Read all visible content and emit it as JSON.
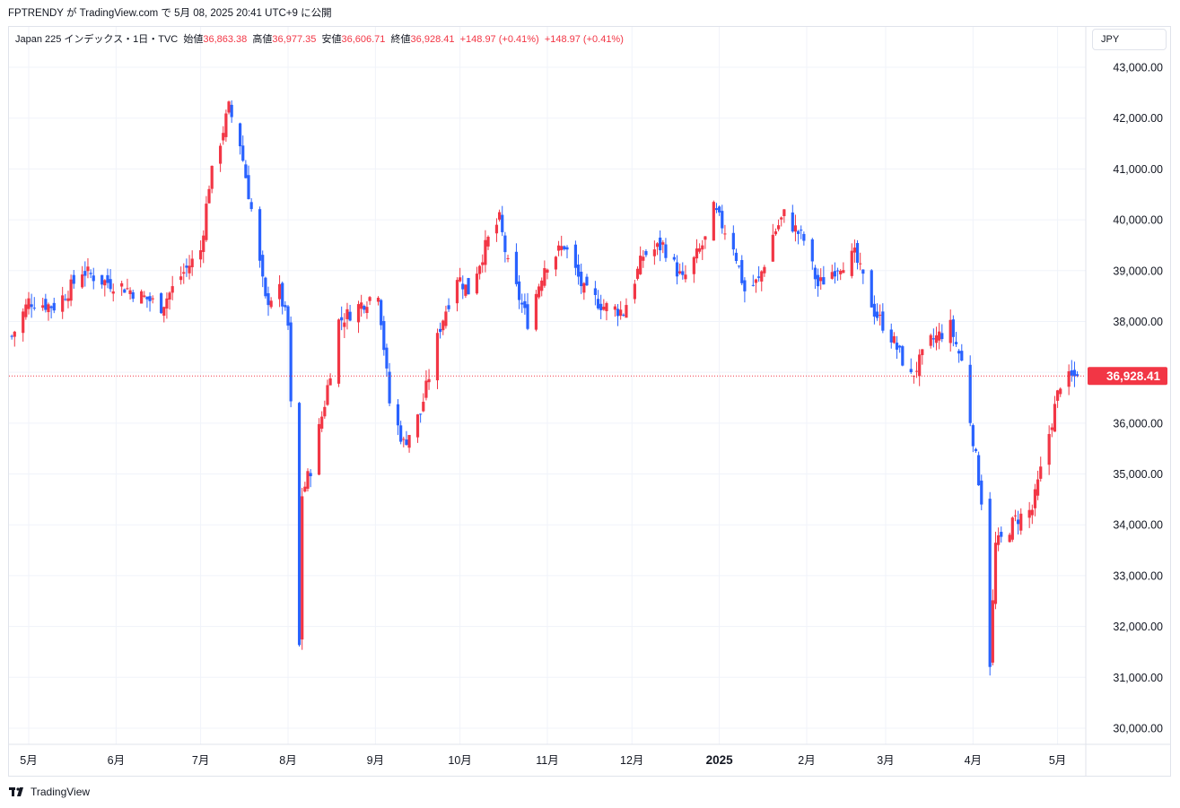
{
  "header": {
    "publish_line": "FPTRENDY が TradingView.com で 5月 08, 2025 20:41 UTC+9 に公開"
  },
  "legend": {
    "symbol": "Japan 225 インデックス・1日・TVC",
    "open_label": "始値",
    "open_value": "36,863.38",
    "high_label": "高値",
    "high_value": "36,977.35",
    "low_label": "安値",
    "low_value": "36,606.71",
    "close_label": "終値",
    "close_value": "36,928.41",
    "change1": "+148.97 (+0.41%)",
    "change2": "+148.97 (+0.41%)"
  },
  "currency": "JPY",
  "footer": {
    "brand": "TradingView"
  },
  "colors": {
    "up": "#f23645",
    "down": "#2962ff",
    "grid": "#f0f3fa",
    "price_line": "#f23645"
  },
  "chart_data": {
    "type": "candlestick",
    "title": "Japan 225 インデックス・1日・TVC",
    "ylim": [
      29700,
      43600
    ],
    "y_ticks": [
      "30,000.00",
      "31,000.00",
      "32,000.00",
      "33,000.00",
      "34,000.00",
      "35,000.00",
      "36,000.00",
      "37,000.00",
      "38,000.00",
      "39,000.00",
      "40,000.00",
      "41,000.00",
      "42,000.00",
      "43,000.00"
    ],
    "y_tick_values": [
      30000,
      31000,
      32000,
      33000,
      34000,
      35000,
      36000,
      37000,
      38000,
      39000,
      40000,
      41000,
      42000,
      43000
    ],
    "x_ticks": [
      {
        "label": "5月",
        "date": "2024-05-01"
      },
      {
        "label": "6月",
        "date": "2024-06-01"
      },
      {
        "label": "7月",
        "date": "2024-07-01"
      },
      {
        "label": "8月",
        "date": "2024-08-01"
      },
      {
        "label": "9月",
        "date": "2024-09-01"
      },
      {
        "label": "10月",
        "date": "2024-10-01"
      },
      {
        "label": "11月",
        "date": "2024-11-01"
      },
      {
        "label": "12月",
        "date": "2024-12-01"
      },
      {
        "label": "2025",
        "date": "2025-01-01",
        "bold": true
      },
      {
        "label": "2月",
        "date": "2025-02-01"
      },
      {
        "label": "3月",
        "date": "2025-03-01"
      },
      {
        "label": "4月",
        "date": "2025-04-01"
      },
      {
        "label": "5月",
        "date": "2025-05-01"
      }
    ],
    "last_price": 36928.41,
    "last_price_label": "36,928.41",
    "close_path": [
      [
        "2024-04-25",
        37700
      ],
      [
        "2024-05-01",
        38400
      ],
      [
        "2024-05-10",
        38300
      ],
      [
        "2024-05-15",
        38600
      ],
      [
        "2024-05-20",
        39000
      ],
      [
        "2024-05-27",
        38800
      ],
      [
        "2024-06-03",
        38700
      ],
      [
        "2024-06-10",
        38500
      ],
      [
        "2024-06-17",
        38300
      ],
      [
        "2024-06-24",
        38900
      ],
      [
        "2024-07-01",
        39400
      ],
      [
        "2024-07-04",
        40700
      ],
      [
        "2024-07-11",
        42200
      ],
      [
        "2024-07-15",
        41500
      ],
      [
        "2024-07-19",
        40200
      ],
      [
        "2024-07-24",
        38400
      ],
      [
        "2024-07-29",
        38600
      ],
      [
        "2024-08-01",
        37900
      ],
      [
        "2024-08-05",
        31600
      ],
      [
        "2024-08-06",
        34600
      ],
      [
        "2024-08-09",
        35100
      ],
      [
        "2024-08-14",
        36400
      ],
      [
        "2024-08-19",
        38000
      ],
      [
        "2024-08-26",
        38300
      ],
      [
        "2024-09-02",
        38600
      ],
      [
        "2024-09-06",
        36400
      ],
      [
        "2024-09-11",
        35600
      ],
      [
        "2024-09-17",
        36200
      ],
      [
        "2024-09-24",
        37900
      ],
      [
        "2024-09-30",
        38900
      ],
      [
        "2024-10-04",
        38600
      ],
      [
        "2024-10-11",
        39600
      ],
      [
        "2024-10-15",
        40000
      ],
      [
        "2024-10-18",
        39100
      ],
      [
        "2024-10-25",
        38000
      ],
      [
        "2024-10-31",
        39100
      ],
      [
        "2024-11-07",
        39500
      ],
      [
        "2024-11-14",
        38600
      ],
      [
        "2024-11-21",
        38300
      ],
      [
        "2024-11-28",
        38200
      ],
      [
        "2024-12-05",
        39300
      ],
      [
        "2024-12-12",
        39500
      ],
      [
        "2024-12-19",
        38800
      ],
      [
        "2024-12-27",
        39600
      ],
      [
        "2024-12-30",
        40200
      ],
      [
        "2025-01-06",
        39500
      ],
      [
        "2025-01-10",
        38600
      ],
      [
        "2025-01-15",
        38800
      ],
      [
        "2025-01-20",
        39700
      ],
      [
        "2025-01-24",
        40100
      ],
      [
        "2025-01-31",
        39600
      ],
      [
        "2025-02-05",
        38700
      ],
      [
        "2025-02-12",
        39100
      ],
      [
        "2025-02-18",
        39300
      ],
      [
        "2025-02-25",
        38200
      ],
      [
        "2025-03-03",
        37700
      ],
      [
        "2025-03-10",
        36900
      ],
      [
        "2025-03-17",
        37600
      ],
      [
        "2025-03-24",
        37900
      ],
      [
        "2025-03-28",
        37200
      ],
      [
        "2025-04-01",
        35700
      ],
      [
        "2025-04-04",
        34500
      ],
      [
        "2025-04-07",
        31300
      ],
      [
        "2025-04-09",
        33600
      ],
      [
        "2025-04-11",
        33700
      ],
      [
        "2025-04-16",
        34100
      ],
      [
        "2025-04-22",
        34300
      ],
      [
        "2025-04-28",
        35800
      ],
      [
        "2025-05-02",
        36800
      ],
      [
        "2025-05-08",
        36928
      ]
    ]
  }
}
